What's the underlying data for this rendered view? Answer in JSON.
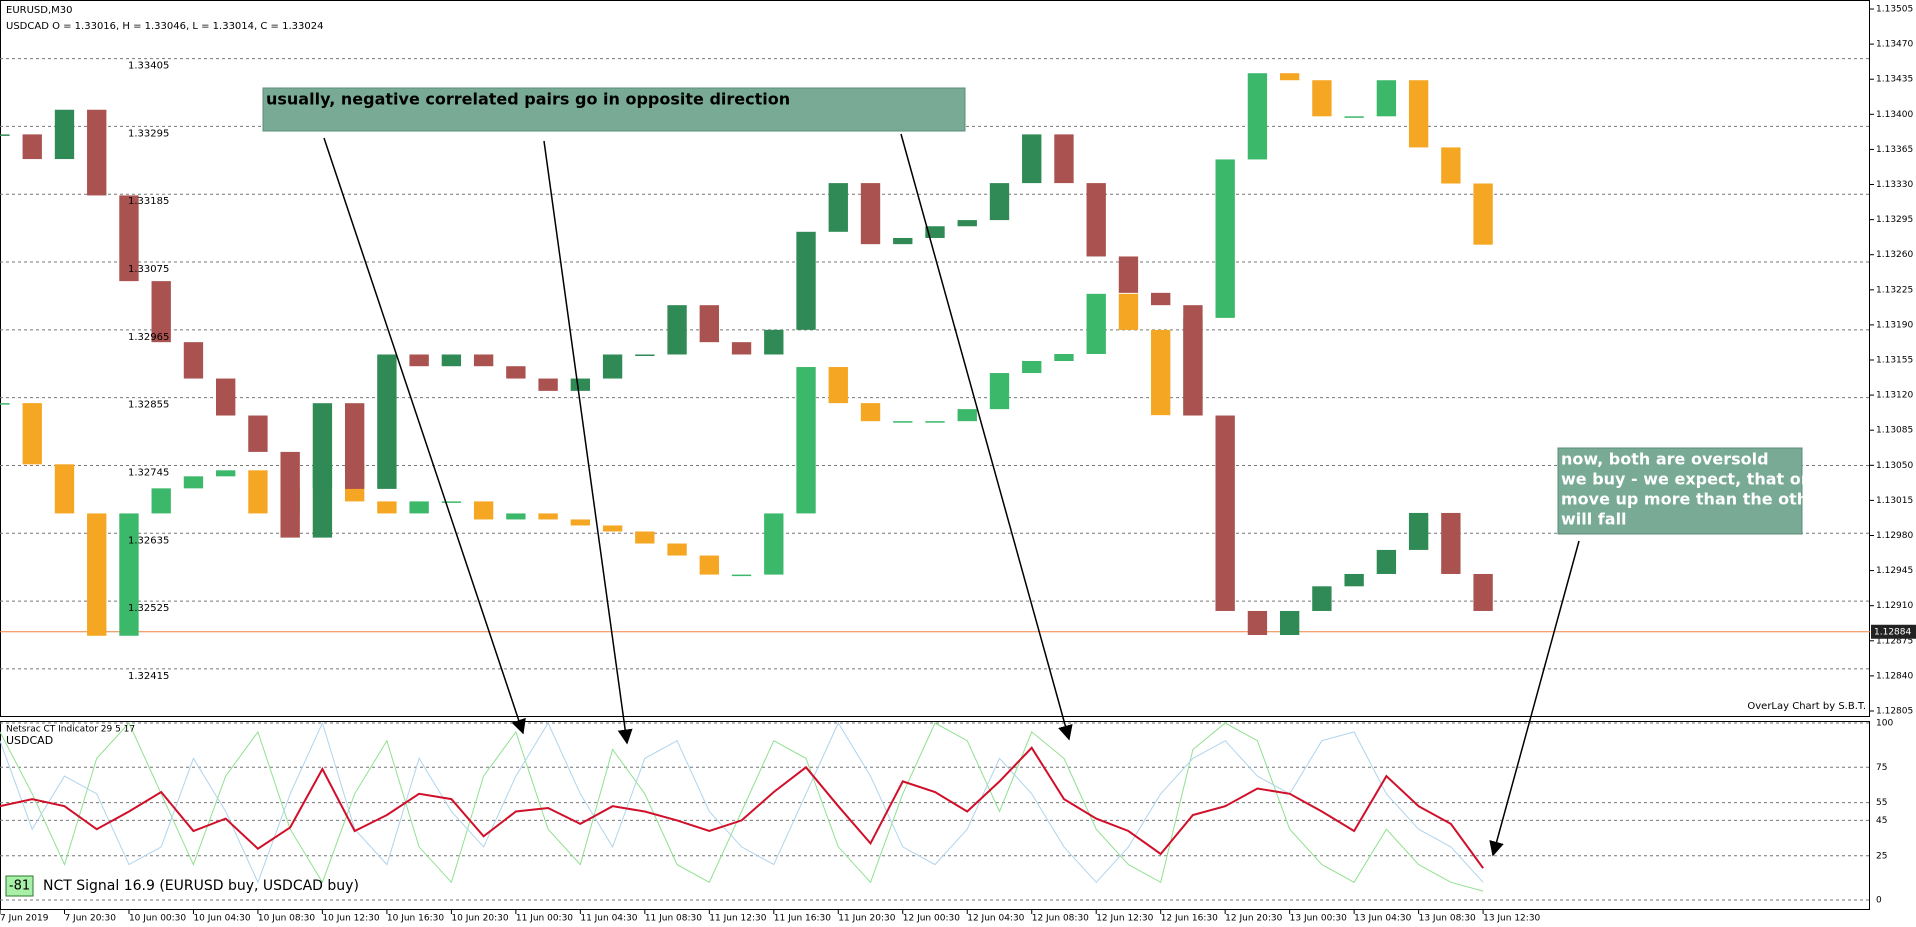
{
  "chart_data": [
    {
      "type": "candlestick",
      "symbol": "EURUSD,M30",
      "subtitle": "USDCAD O = 1.33016, H = 1.33046, L = 1.33014, C = 1.33024",
      "credit": "OverLay Chart by S.B.T.",
      "annotations": [
        "usually, negative correlated pairs go in opposite direction",
        "now, both are oversold",
        "we buy - we expect, that one",
        "move up more than the other",
        "will fall"
      ],
      "current_price": 1.12884,
      "x": [
        0,
        1,
        2,
        3,
        4,
        5,
        6,
        7,
        8,
        9,
        10,
        11,
        12,
        13,
        14,
        15,
        16,
        17,
        18,
        19,
        20,
        21,
        22,
        23,
        24,
        25,
        26,
        27,
        28,
        29,
        30,
        31,
        32,
        33,
        34,
        35,
        36,
        37,
        38,
        39,
        40,
        41,
        42,
        43,
        44,
        45,
        46
      ],
      "xlim": [
        0,
        58
      ],
      "ylim": [
        1.12799,
        1.13514
      ],
      "yticks": [
        1.13505,
        {
          "value": 1.1347,
          "label": "1.13470"
        },
        1.13435,
        {
          "value": 1.134,
          "label": "1.13400"
        },
        1.13365,
        {
          "value": 1.1333,
          "label": "1.13330"
        },
        1.13295,
        {
          "value": 1.1326,
          "label": "1.13260"
        },
        1.13225,
        {
          "value": 1.1319,
          "label": "1.13190"
        },
        1.13155,
        {
          "value": 1.1312,
          "label": "1.13120"
        },
        1.13085,
        {
          "value": 1.1305,
          "label": "1.13050"
        },
        1.13015,
        {
          "value": 1.1298,
          "label": "1.12980"
        },
        1.12945,
        {
          "value": 1.1291,
          "label": "1.12910"
        },
        1.12875,
        {
          "value": 1.1284,
          "label": "1.12840"
        },
        1.12805
      ],
      "y2lim": [
        1.32337,
        1.335
      ],
      "y2ticks": [
        1.33405,
        1.33295,
        1.33185,
        1.33075,
        1.32965,
        1.32855,
        1.32745,
        1.32635,
        1.32525,
        1.32415
      ],
      "grid": true,
      "series": [
        {
          "up_color": "#3cb86a",
          "down_color": "#f5a623",
          "values": [
            1.13112,
            1.13051,
            1.13002,
            1.1288,
            1.13002,
            1.13027,
            1.13039,
            1.13045,
            1.13002,
            1.13027,
            1.13051,
            1.13014,
            1.13002,
            1.13014,
            1.13014,
            1.12996,
            1.13002,
            1.12996,
            1.1299,
            1.12984,
            1.12972,
            1.1296,
            1.12941,
            1.12941,
            1.13002,
            1.13148,
            1.13112,
            1.13094,
            1.13094,
            1.13094,
            1.13106,
            1.13142,
            1.13154,
            1.13161,
            1.13221,
            1.13185,
            1.131,
            1.13197,
            1.13355,
            1.13441,
            1.13434,
            1.13398,
            1.13398,
            1.13434,
            1.13367,
            1.13331,
            1.1327
          ]
        },
        {
          "axis": "y2",
          "up_color": "#2f8a55",
          "down_color": "#a9524f",
          "values": [
            1.33282,
            1.33242,
            1.33322,
            1.33183,
            1.33044,
            1.32945,
            1.32886,
            1.32826,
            1.32767,
            1.32628,
            1.32846,
            1.32707,
            1.32925,
            1.32906,
            1.32925,
            1.32906,
            1.32886,
            1.32866,
            1.32886,
            1.32925,
            1.32925,
            1.33005,
            1.32945,
            1.32925,
            1.32965,
            1.33124,
            1.33203,
            1.33104,
            1.33114,
            1.33133,
            1.33143,
            1.33203,
            1.33282,
            1.33203,
            1.33084,
            1.33025,
            1.33005,
            1.32826,
            1.32509,
            1.3247,
            1.32509,
            1.32549,
            1.32569,
            1.32608,
            1.32668,
            1.32569,
            1.32509
          ]
        }
      ]
    },
    {
      "type": "line",
      "title": "Netsrac CT Indicator 29 5 17",
      "signal_value": -81,
      "signal_text": "NCT Signal 16.9 (EURUSD buy, USDCAD buy)",
      "x": [
        0,
        1,
        2,
        3,
        4,
        5,
        6,
        7,
        8,
        9,
        10,
        11,
        12,
        13,
        14,
        15,
        16,
        17,
        18,
        19,
        20,
        21,
        22,
        23,
        24,
        25,
        26,
        27,
        28,
        29,
        30,
        31,
        32,
        33,
        34,
        35,
        36,
        37,
        38,
        39,
        40,
        41,
        42,
        43,
        44,
        45,
        46
      ],
      "xlim": [
        0,
        58
      ],
      "xticks": [
        {
          "value": 0,
          "label": "7 Jun 2019"
        },
        {
          "value": 2,
          "label": "7 Jun 20:30"
        },
        {
          "value": 4,
          "label": "10 Jun 00:30"
        },
        {
          "value": 6,
          "label": "10 Jun 04:30"
        },
        {
          "value": 8,
          "label": "10 Jun 08:30"
        },
        {
          "value": 10,
          "label": "10 Jun 12:30"
        },
        {
          "value": 12,
          "label": "10 Jun 16:30"
        },
        {
          "value": 14,
          "label": "10 Jun 20:30"
        },
        {
          "value": 16,
          "label": "11 Jun 00:30"
        },
        {
          "value": 18,
          "label": "11 Jun 04:30"
        },
        {
          "value": 20,
          "label": "11 Jun 08:30"
        },
        {
          "value": 22,
          "label": "11 Jun 12:30"
        },
        {
          "value": 24,
          "label": "11 Jun 16:30"
        },
        {
          "value": 26,
          "label": "11 Jun 20:30"
        },
        {
          "value": 28,
          "label": "12 Jun 00:30"
        },
        {
          "value": 30,
          "label": "12 Jun 04:30"
        },
        {
          "value": 32,
          "label": "12 Jun 08:30"
        },
        {
          "value": 34,
          "label": "12 Jun 12:30"
        },
        {
          "value": 36,
          "label": "12 Jun 16:30"
        },
        {
          "value": 38,
          "label": "12 Jun 20:30"
        },
        {
          "value": 40,
          "label": "13 Jun 00:30"
        },
        {
          "value": 42,
          "label": "13 Jun 04:30"
        },
        {
          "value": 44,
          "label": "13 Jun 08:30"
        },
        {
          "value": 46,
          "label": "13 Jun 12:30"
        }
      ],
      "ylim": [
        0,
        100
      ],
      "yticks": [
        100,
        75,
        55,
        45,
        25,
        0
      ],
      "grid": true,
      "series": [
        {
          "name": "USDCAD",
          "color": "#90e090",
          "values": [
            95,
            60,
            20,
            80,
            100,
            60,
            20,
            70,
            95,
            40,
            10,
            60,
            90,
            30,
            10,
            70,
            95,
            40,
            20,
            85,
            60,
            20,
            10,
            50,
            90,
            80,
            30,
            10,
            60,
            100,
            90,
            50,
            95,
            80,
            40,
            20,
            10,
            85,
            100,
            90,
            40,
            20,
            10,
            40,
            20,
            10,
            5
          ]
        },
        {
          "color": "#b0d4ec",
          "values": [
            90,
            40,
            70,
            60,
            20,
            30,
            80,
            50,
            10,
            60,
            100,
            40,
            20,
            80,
            50,
            30,
            70,
            100,
            60,
            30,
            80,
            90,
            50,
            30,
            20,
            60,
            100,
            70,
            30,
            20,
            40,
            80,
            60,
            30,
            10,
            30,
            60,
            80,
            90,
            70,
            60,
            90,
            95,
            60,
            40,
            30,
            10
          ]
        },
        {
          "color": "#d0102a",
          "values": [
            53,
            57,
            53,
            40,
            50,
            61,
            39,
            46,
            29,
            41,
            74,
            39,
            48,
            60,
            57,
            36,
            50,
            52,
            43,
            53,
            50,
            45,
            39,
            45,
            61,
            75,
            53,
            32,
            67,
            61,
            50,
            67,
            86,
            57,
            46,
            39,
            26,
            48,
            53,
            63,
            60,
            50,
            39,
            70,
            53,
            43,
            18
          ]
        }
      ]
    }
  ]
}
